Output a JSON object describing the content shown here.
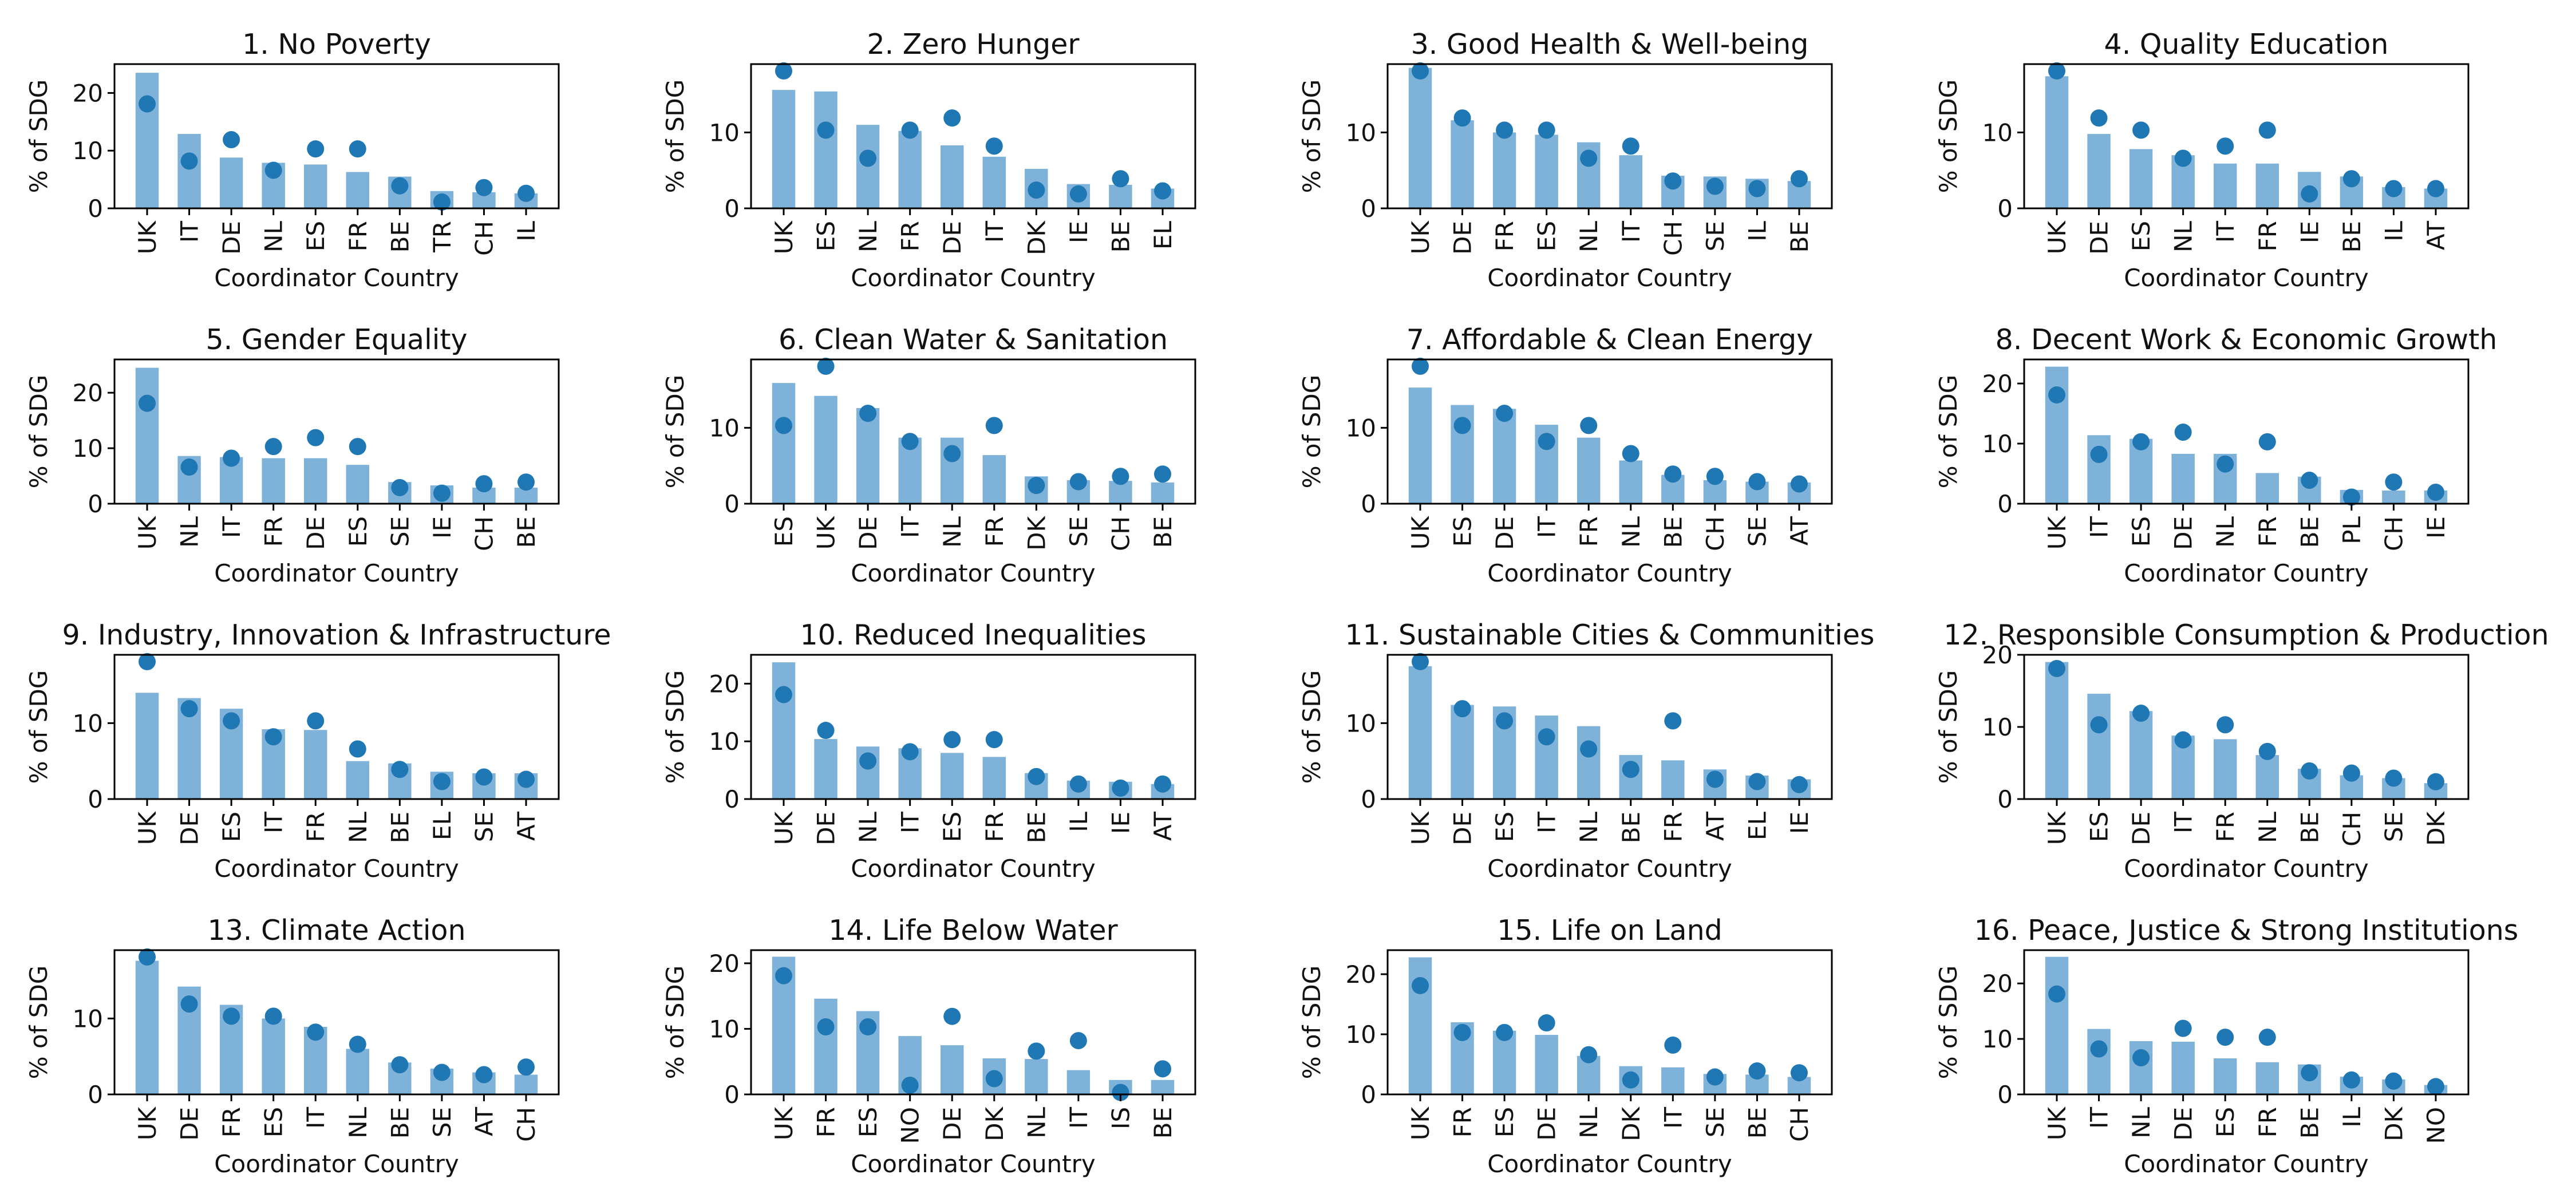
{
  "colors": {
    "bar": "#7fb2d9",
    "dot": "#1f77b4",
    "axis": "#000000"
  },
  "chart_data": [
    {
      "type": "bar",
      "title": "1. No Poverty",
      "xlabel": "Coordinator Country",
      "ylabel": "% of SDG",
      "ylim": [
        0,
        25
      ],
      "yticks": [
        0,
        10,
        20
      ],
      "categories": [
        "UK",
        "IT",
        "DE",
        "NL",
        "ES",
        "FR",
        "BE",
        "TR",
        "CH",
        "IL"
      ],
      "series": [
        {
          "values": [
            23.5,
            12.9,
            8.8,
            7.9,
            7.6,
            6.3,
            5.5,
            3.0,
            2.8,
            2.6
          ]
        },
        {
          "values": [
            18.1,
            8.2,
            11.9,
            6.6,
            10.3,
            10.3,
            3.9,
            1.1,
            3.6,
            2.6
          ]
        }
      ]
    },
    {
      "type": "bar",
      "title": "2. Zero Hunger",
      "xlabel": "Coordinator Country",
      "ylabel": "% of SDG",
      "ylim": [
        0,
        19
      ],
      "yticks": [
        0,
        10
      ],
      "categories": [
        "UK",
        "ES",
        "NL",
        "FR",
        "DE",
        "IT",
        "DK",
        "IE",
        "BE",
        "EL"
      ],
      "series": [
        {
          "values": [
            15.6,
            15.4,
            11.0,
            10.2,
            8.3,
            6.8,
            5.2,
            3.2,
            3.1,
            2.6
          ]
        },
        {
          "values": [
            18.1,
            10.3,
            6.6,
            10.3,
            11.9,
            8.2,
            2.4,
            1.9,
            3.9,
            2.3
          ]
        }
      ]
    },
    {
      "type": "bar",
      "title": "3. Good Health & Well-being",
      "xlabel": "Coordinator Country",
      "ylabel": "% of SDG",
      "ylim": [
        0,
        19
      ],
      "yticks": [
        0,
        10
      ],
      "categories": [
        "UK",
        "DE",
        "FR",
        "ES",
        "NL",
        "IT",
        "CH",
        "SE",
        "IL",
        "BE"
      ],
      "series": [
        {
          "values": [
            18.5,
            11.6,
            10.0,
            9.7,
            8.7,
            7.0,
            4.3,
            4.2,
            3.9,
            3.6
          ]
        },
        {
          "values": [
            18.1,
            11.9,
            10.3,
            10.3,
            6.6,
            8.2,
            3.6,
            2.9,
            2.6,
            3.9
          ]
        }
      ]
    },
    {
      "type": "bar",
      "title": "4. Quality Education",
      "xlabel": "Coordinator Country",
      "ylabel": "% of SDG",
      "ylim": [
        0,
        19
      ],
      "yticks": [
        0,
        10
      ],
      "categories": [
        "UK",
        "DE",
        "ES",
        "NL",
        "IT",
        "FR",
        "IE",
        "BE",
        "IL",
        "AT"
      ],
      "series": [
        {
          "values": [
            17.4,
            9.8,
            7.8,
            7.0,
            5.9,
            5.9,
            4.8,
            4.2,
            2.8,
            2.6
          ]
        },
        {
          "values": [
            18.1,
            11.9,
            10.3,
            6.6,
            8.2,
            10.3,
            1.9,
            3.9,
            2.6,
            2.6
          ]
        }
      ]
    },
    {
      "type": "bar",
      "title": "5. Gender Equality",
      "xlabel": "Coordinator Country",
      "ylabel": "% of SDG",
      "ylim": [
        0,
        26
      ],
      "yticks": [
        0,
        10,
        20
      ],
      "categories": [
        "UK",
        "NL",
        "IT",
        "FR",
        "DE",
        "ES",
        "SE",
        "IE",
        "CH",
        "BE"
      ],
      "series": [
        {
          "values": [
            24.5,
            8.6,
            8.4,
            8.2,
            8.2,
            7.0,
            3.9,
            3.3,
            2.9,
            2.9
          ]
        },
        {
          "values": [
            18.1,
            6.6,
            8.2,
            10.3,
            11.9,
            10.3,
            2.9,
            1.9,
            3.6,
            3.9
          ]
        }
      ]
    },
    {
      "type": "bar",
      "title": "6. Clean Water & Sanitation",
      "xlabel": "Coordinator Country",
      "ylabel": "% of SDG",
      "ylim": [
        0,
        19
      ],
      "yticks": [
        0,
        10
      ],
      "categories": [
        "ES",
        "UK",
        "DE",
        "IT",
        "NL",
        "FR",
        "DK",
        "SE",
        "CH",
        "BE"
      ],
      "series": [
        {
          "values": [
            15.9,
            14.2,
            12.6,
            8.7,
            8.7,
            6.4,
            3.6,
            3.1,
            3.0,
            2.8
          ]
        },
        {
          "values": [
            10.3,
            18.1,
            11.9,
            8.2,
            6.6,
            10.3,
            2.4,
            2.9,
            3.6,
            3.9
          ]
        }
      ]
    },
    {
      "type": "bar",
      "title": "7. Affordable & Clean Energy",
      "xlabel": "Coordinator Country",
      "ylabel": "% of SDG",
      "ylim": [
        0,
        19
      ],
      "yticks": [
        0,
        10
      ],
      "categories": [
        "UK",
        "ES",
        "DE",
        "IT",
        "FR",
        "NL",
        "BE",
        "CH",
        "SE",
        "AT"
      ],
      "series": [
        {
          "values": [
            15.3,
            13.0,
            12.5,
            10.4,
            8.7,
            5.7,
            3.8,
            3.1,
            2.9,
            2.8
          ]
        },
        {
          "values": [
            18.1,
            10.3,
            11.9,
            8.2,
            10.3,
            6.6,
            3.9,
            3.6,
            2.9,
            2.6
          ]
        }
      ]
    },
    {
      "type": "bar",
      "title": "8. Decent Work & Economic Growth",
      "xlabel": "Coordinator Country",
      "ylabel": "% of SDG",
      "ylim": [
        0,
        24
      ],
      "yticks": [
        0,
        10,
        20
      ],
      "categories": [
        "UK",
        "IT",
        "ES",
        "DE",
        "NL",
        "FR",
        "BE",
        "PL",
        "CH",
        "IE"
      ],
      "series": [
        {
          "values": [
            22.8,
            11.4,
            10.8,
            8.3,
            8.3,
            5.1,
            4.5,
            2.3,
            2.2,
            2.2
          ]
        },
        {
          "values": [
            18.1,
            8.2,
            10.3,
            11.9,
            6.6,
            10.3,
            3.9,
            1.1,
            3.6,
            1.9
          ]
        }
      ]
    },
    {
      "type": "bar",
      "title": "9. Industry, Innovation & Infrastructure",
      "xlabel": "Coordinator Country",
      "ylabel": "% of SDG",
      "ylim": [
        0,
        19
      ],
      "yticks": [
        0,
        10
      ],
      "categories": [
        "UK",
        "DE",
        "ES",
        "IT",
        "FR",
        "NL",
        "BE",
        "EL",
        "SE",
        "AT"
      ],
      "series": [
        {
          "values": [
            14.0,
            13.3,
            11.9,
            9.2,
            9.1,
            5.0,
            4.7,
            3.6,
            3.4,
            3.4
          ]
        },
        {
          "values": [
            18.1,
            11.9,
            10.3,
            8.2,
            10.3,
            6.6,
            3.9,
            2.3,
            2.9,
            2.6
          ]
        }
      ]
    },
    {
      "type": "bar",
      "title": "10.  Reduced Inequalities",
      "xlabel": "Coordinator Country",
      "ylabel": "% of SDG",
      "ylim": [
        0,
        25
      ],
      "yticks": [
        0,
        10,
        20
      ],
      "categories": [
        "UK",
        "DE",
        "NL",
        "IT",
        "ES",
        "FR",
        "BE",
        "IL",
        "IE",
        "AT"
      ],
      "series": [
        {
          "values": [
            23.7,
            10.4,
            9.1,
            8.8,
            8.0,
            7.3,
            4.5,
            3.2,
            3.0,
            2.6
          ]
        },
        {
          "values": [
            18.1,
            11.9,
            6.6,
            8.2,
            10.3,
            10.3,
            3.9,
            2.6,
            1.9,
            2.6
          ]
        }
      ]
    },
    {
      "type": "bar",
      "title": "11.  Sustainable Cities & Communities",
      "xlabel": "Coordinator Country",
      "ylabel": "% of SDG",
      "ylim": [
        0,
        19
      ],
      "yticks": [
        0,
        10
      ],
      "categories": [
        "UK",
        "DE",
        "ES",
        "IT",
        "NL",
        "BE",
        "FR",
        "AT",
        "EL",
        "IE"
      ],
      "series": [
        {
          "values": [
            17.5,
            12.4,
            12.2,
            11.0,
            9.6,
            5.8,
            5.1,
            3.9,
            3.1,
            2.6
          ]
        },
        {
          "values": [
            18.1,
            11.9,
            10.3,
            8.2,
            6.6,
            3.9,
            10.3,
            2.6,
            2.3,
            1.9
          ]
        }
      ]
    },
    {
      "type": "bar",
      "title": "12.  Responsible Consumption & Production",
      "xlabel": "Coordinator Country",
      "ylabel": "% of SDG",
      "ylim": [
        0,
        20
      ],
      "yticks": [
        0,
        10,
        20
      ],
      "categories": [
        "UK",
        "ES",
        "DE",
        "IT",
        "FR",
        "NL",
        "BE",
        "CH",
        "SE",
        "DK"
      ],
      "series": [
        {
          "values": [
            19.0,
            14.6,
            12.2,
            8.8,
            8.3,
            6.1,
            4.2,
            3.3,
            2.9,
            2.2
          ]
        },
        {
          "values": [
            18.1,
            10.3,
            11.9,
            8.2,
            10.3,
            6.6,
            3.9,
            3.6,
            2.9,
            2.4
          ]
        }
      ]
    },
    {
      "type": "bar",
      "title": "13.  Climate Action",
      "xlabel": "Coordinator Country",
      "ylabel": "% of SDG",
      "ylim": [
        0,
        19
      ],
      "yticks": [
        0,
        10
      ],
      "categories": [
        "UK",
        "DE",
        "FR",
        "ES",
        "IT",
        "NL",
        "BE",
        "SE",
        "AT",
        "CH"
      ],
      "series": [
        {
          "values": [
            17.6,
            14.2,
            11.8,
            10.0,
            8.9,
            6.0,
            4.2,
            3.4,
            2.9,
            2.6
          ]
        },
        {
          "values": [
            18.1,
            11.9,
            10.3,
            10.3,
            8.2,
            6.6,
            3.9,
            2.9,
            2.6,
            3.6
          ]
        }
      ]
    },
    {
      "type": "bar",
      "title": "14.  Life Below Water",
      "xlabel": "Coordinator Country",
      "ylabel": "% of SDG",
      "ylim": [
        0,
        22
      ],
      "yticks": [
        0,
        10,
        20
      ],
      "categories": [
        "UK",
        "FR",
        "ES",
        "NO",
        "DE",
        "DK",
        "NL",
        "IT",
        "IS",
        "BE"
      ],
      "series": [
        {
          "values": [
            21.0,
            14.6,
            12.7,
            8.9,
            7.5,
            5.5,
            5.4,
            3.7,
            2.2,
            2.2
          ]
        },
        {
          "values": [
            18.1,
            10.3,
            10.3,
            1.4,
            11.9,
            2.4,
            6.6,
            8.2,
            0.3,
            3.9
          ]
        }
      ]
    },
    {
      "type": "bar",
      "title": "15.  Life on Land",
      "xlabel": "Coordinator Country",
      "ylabel": "% of SDG",
      "ylim": [
        0,
        24
      ],
      "yticks": [
        0,
        10,
        20
      ],
      "categories": [
        "UK",
        "FR",
        "ES",
        "DE",
        "NL",
        "DK",
        "IT",
        "SE",
        "BE",
        "CH"
      ],
      "series": [
        {
          "values": [
            22.8,
            12.0,
            10.6,
            9.9,
            6.4,
            4.7,
            4.5,
            3.4,
            3.3,
            2.9
          ]
        },
        {
          "values": [
            18.1,
            10.3,
            10.3,
            11.9,
            6.6,
            2.4,
            8.2,
            2.9,
            3.9,
            3.6
          ]
        }
      ]
    },
    {
      "type": "bar",
      "title": "16.  Peace, Justice & Strong Institutions",
      "xlabel": "Coordinator Country",
      "ylabel": "% of SDG",
      "ylim": [
        0,
        26
      ],
      "yticks": [
        0,
        10,
        20
      ],
      "categories": [
        "UK",
        "IT",
        "NL",
        "DE",
        "ES",
        "FR",
        "BE",
        "IL",
        "DK",
        "NO"
      ],
      "series": [
        {
          "values": [
            24.8,
            11.8,
            9.6,
            9.5,
            6.5,
            5.8,
            5.4,
            3.2,
            2.7,
            1.7
          ]
        },
        {
          "values": [
            18.1,
            8.2,
            6.6,
            11.9,
            10.3,
            10.3,
            3.9,
            2.6,
            2.4,
            1.4
          ]
        }
      ]
    }
  ]
}
